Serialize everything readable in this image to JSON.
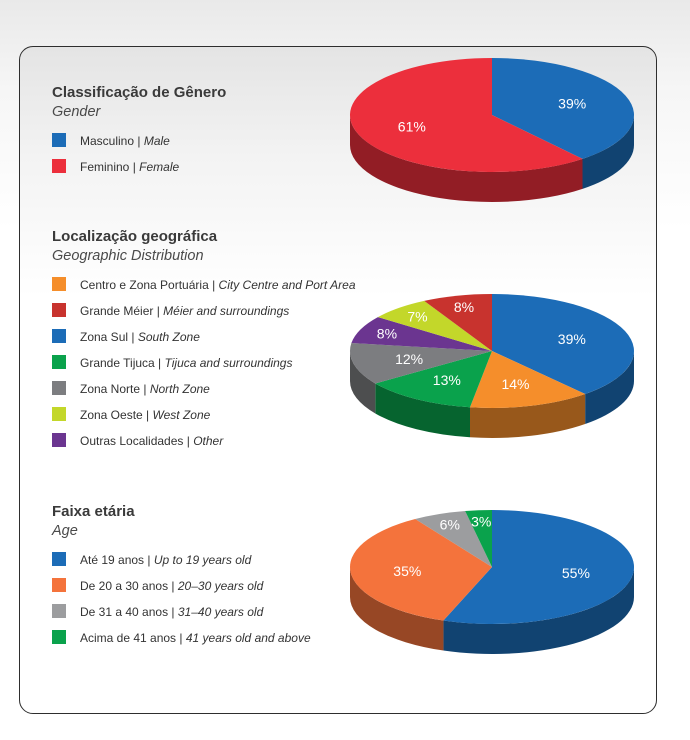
{
  "chart_data": [
    {
      "type": "pie",
      "title": "Classificação de Gênero",
      "subtitle": "Gender",
      "slices": [
        {
          "pt": "Masculino",
          "en": "Male",
          "value": 39,
          "label": "39%",
          "color": "#1c6cb7"
        },
        {
          "pt": "Feminino",
          "en": "Female",
          "value": 61,
          "label": "61%",
          "color": "#ec2f3c"
        }
      ]
    },
    {
      "type": "pie",
      "title": "Localização geográfica",
      "subtitle": "Geographic Distribution",
      "legend": [
        {
          "pt": "Centro e Zona Portuária",
          "en": "City Centre and Port Area",
          "color": "#f58e2b"
        },
        {
          "pt": "Grande Méier",
          "en": "Méier and surroundings",
          "color": "#c8332e"
        },
        {
          "pt": "Zona Sul",
          "en": "South Zone",
          "color": "#1c6cb7"
        },
        {
          "pt": "Grande Tijuca",
          "en": "Tijuca and surroundings",
          "color": "#0aa24c"
        },
        {
          "pt": "Zona Norte",
          "en": "North Zone",
          "color": "#7c7d80"
        },
        {
          "pt": "Zona Oeste",
          "en": "West Zone",
          "color": "#c3d72a"
        },
        {
          "pt": "Outras Localidades",
          "en": "Other",
          "color": "#6b3590"
        }
      ],
      "slices": [
        {
          "name": "Zona Sul",
          "value": 39,
          "label": "39%",
          "color": "#1c6cb7"
        },
        {
          "name": "Centro e Zona Portuária",
          "value": 14,
          "label": "14%",
          "color": "#f58e2b"
        },
        {
          "name": "Grande Tijuca",
          "value": 13,
          "label": "13%",
          "color": "#0aa24c"
        },
        {
          "name": "Zona Norte",
          "value": 12,
          "label": "12%",
          "color": "#7c7d80"
        },
        {
          "name": "Outras Localidades",
          "value": 8,
          "label": "8%",
          "color": "#6b3590"
        },
        {
          "name": "Zona Oeste",
          "value": 7,
          "label": "7%",
          "color": "#c3d72a"
        },
        {
          "name": "Grande Méier",
          "value": 8,
          "label": "8%",
          "color": "#c8332e"
        }
      ]
    },
    {
      "type": "pie",
      "title": "Faixa etária",
      "subtitle": "Age",
      "slices": [
        {
          "pt": "Até 19 anos",
          "en": "Up to 19 years old",
          "value": 55,
          "label": "55%",
          "color": "#1c6cb7"
        },
        {
          "pt": "De 20 a 30 anos",
          "en": "20–30 years old",
          "value": 35,
          "label": "35%",
          "color": "#f4733c"
        },
        {
          "pt": "De 31 a 40 anos",
          "en": "31–40 years old",
          "value": 6,
          "label": "6%",
          "color": "#9c9d9f"
        },
        {
          "pt": "Acima de 41 anos",
          "en": "41 years old and above",
          "value": 3,
          "label": "3%",
          "color": "#0aa24c"
        }
      ]
    }
  ]
}
